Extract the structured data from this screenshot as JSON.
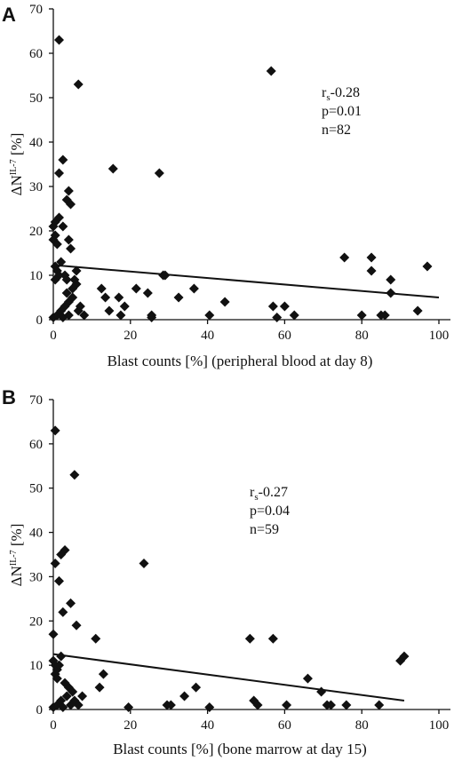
{
  "chart_data": [
    {
      "type": "scatter",
      "panel_label": "A",
      "xlabel": "Blast counts [%] (peripheral blood at day 8)",
      "ylabel": "ΔN",
      "ylabel_sup": "IL-7",
      "ylabel_unit": " [%]",
      "xlim": [
        0,
        100
      ],
      "ylim": [
        0,
        70
      ],
      "xticks": [
        "0",
        "20",
        "40",
        "60",
        "80",
        "100"
      ],
      "yticks": [
        "0",
        "10",
        "20",
        "30",
        "40",
        "50",
        "60",
        "70"
      ],
      "grid": false,
      "stats": {
        "rs": "-0.28",
        "p": "p=0.01",
        "n": "n=82"
      },
      "regression": {
        "x": [
          0,
          100
        ],
        "y": [
          12.3,
          5.0
        ]
      },
      "points": [
        [
          1.5,
          63
        ],
        [
          6.5,
          53
        ],
        [
          56.5,
          56
        ],
        [
          2.5,
          36
        ],
        [
          15.5,
          34
        ],
        [
          27.5,
          33
        ],
        [
          1.5,
          33
        ],
        [
          4,
          29
        ],
        [
          3.5,
          27
        ],
        [
          4.5,
          26
        ],
        [
          0.5,
          22
        ],
        [
          1.5,
          23
        ],
        [
          2.5,
          21
        ],
        [
          0,
          21
        ],
        [
          0.5,
          19
        ],
        [
          0,
          18
        ],
        [
          1,
          17
        ],
        [
          4,
          18
        ],
        [
          4.5,
          16
        ],
        [
          0.5,
          12
        ],
        [
          1,
          11
        ],
        [
          2,
          13
        ],
        [
          1.5,
          10
        ],
        [
          0.5,
          9
        ],
        [
          3,
          10
        ],
        [
          6,
          11
        ],
        [
          3.5,
          9
        ],
        [
          5.5,
          9
        ],
        [
          0,
          0.5
        ],
        [
          1,
          1
        ],
        [
          2,
          2
        ],
        [
          3,
          3
        ],
        [
          4,
          4
        ],
        [
          5,
          5
        ],
        [
          3.5,
          6
        ],
        [
          5,
          7
        ],
        [
          6,
          8
        ],
        [
          2.5,
          0.5
        ],
        [
          4,
          1
        ],
        [
          6.5,
          2
        ],
        [
          7,
          3
        ],
        [
          8,
          1
        ],
        [
          28.5,
          10
        ],
        [
          29,
          10
        ],
        [
          12.5,
          7
        ],
        [
          13.5,
          5
        ],
        [
          14.5,
          2
        ],
        [
          17.5,
          1
        ],
        [
          17,
          5
        ],
        [
          18.5,
          3
        ],
        [
          21.5,
          7
        ],
        [
          24.5,
          6
        ],
        [
          25.5,
          1
        ],
        [
          25.5,
          0.5
        ],
        [
          32.5,
          5
        ],
        [
          36.5,
          7
        ],
        [
          40.5,
          1
        ],
        [
          44.5,
          4
        ],
        [
          57,
          3
        ],
        [
          58,
          0.5
        ],
        [
          60,
          3
        ],
        [
          62.5,
          1
        ],
        [
          75.5,
          14
        ],
        [
          82.5,
          14
        ],
        [
          82.5,
          11
        ],
        [
          87.5,
          9
        ],
        [
          87.5,
          6
        ],
        [
          97,
          12
        ],
        [
          80,
          1
        ],
        [
          85,
          1
        ],
        [
          86,
          1
        ],
        [
          94.5,
          2
        ]
      ]
    },
    {
      "type": "scatter",
      "panel_label": "B",
      "xlabel": "Blast counts [%] (bone marrow at day 15)",
      "ylabel": "ΔN",
      "ylabel_sup": "IL-7",
      "ylabel_unit": " [%]",
      "xlim": [
        0,
        100
      ],
      "ylim": [
        0,
        70
      ],
      "xticks": [
        "0",
        "20",
        "40",
        "60",
        "80",
        "100"
      ],
      "yticks": [
        "0",
        "10",
        "20",
        "30",
        "40",
        "50",
        "60",
        "70"
      ],
      "grid": false,
      "stats": {
        "rs": "-0.27",
        "p": "p=0.04",
        "n": "n=59"
      },
      "regression": {
        "x": [
          0,
          91
        ],
        "y": [
          12.5,
          2.0
        ]
      },
      "points": [
        [
          0.5,
          63
        ],
        [
          5.5,
          53
        ],
        [
          23.5,
          33
        ],
        [
          3,
          36
        ],
        [
          2,
          35
        ],
        [
          0.5,
          33
        ],
        [
          1.5,
          29
        ],
        [
          4.5,
          24
        ],
        [
          2.5,
          22
        ],
        [
          6,
          19
        ],
        [
          0,
          17
        ],
        [
          0,
          11
        ],
        [
          0.5,
          10
        ],
        [
          1,
          9
        ],
        [
          1.5,
          10
        ],
        [
          2,
          12
        ],
        [
          0.5,
          8
        ],
        [
          1,
          7
        ],
        [
          3,
          6
        ],
        [
          4,
          5
        ],
        [
          0,
          0.5
        ],
        [
          1,
          1
        ],
        [
          2,
          2
        ],
        [
          3.5,
          3
        ],
        [
          5,
          4
        ],
        [
          5.5,
          2
        ],
        [
          6.5,
          1
        ],
        [
          7.5,
          3
        ],
        [
          2.5,
          0.5
        ],
        [
          4.5,
          1
        ],
        [
          11,
          16
        ],
        [
          12,
          5
        ],
        [
          13,
          8
        ],
        [
          19.5,
          0.5
        ],
        [
          29.5,
          1
        ],
        [
          30.5,
          1
        ],
        [
          34,
          3
        ],
        [
          37,
          5
        ],
        [
          40.5,
          0.5
        ],
        [
          51,
          16
        ],
        [
          52,
          2
        ],
        [
          53,
          1
        ],
        [
          57,
          16
        ],
        [
          60.5,
          1
        ],
        [
          66,
          7
        ],
        [
          69.5,
          4
        ],
        [
          71,
          1
        ],
        [
          72,
          1
        ],
        [
          76,
          1
        ],
        [
          84.5,
          1
        ],
        [
          90,
          11
        ],
        [
          91,
          12
        ]
      ]
    }
  ]
}
